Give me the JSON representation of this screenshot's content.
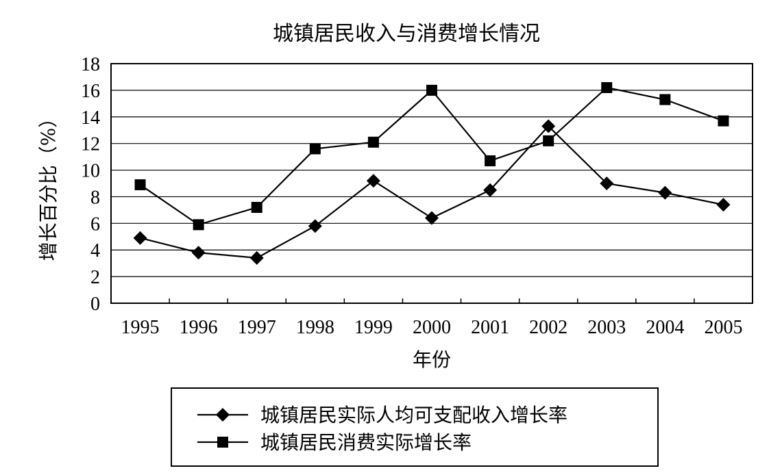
{
  "chart_data": {
    "type": "line",
    "title": "城镇居民收入与消费增长情况",
    "xlabel": "年份",
    "ylabel": "增长百分比（%）",
    "categories": [
      "1995",
      "1996",
      "1997",
      "1998",
      "1999",
      "2000",
      "2001",
      "2002",
      "2003",
      "2004",
      "2005"
    ],
    "ylim": [
      0,
      18
    ],
    "yticks": [
      0,
      2,
      4,
      6,
      8,
      10,
      12,
      14,
      16,
      18
    ],
    "grid": true,
    "legend_position": "bottom",
    "series": [
      {
        "name": "城镇居民实际人均可支配收入增长率",
        "marker": "diamond",
        "values": [
          4.9,
          3.8,
          3.4,
          5.8,
          9.2,
          6.4,
          8.5,
          13.3,
          9.0,
          8.3,
          7.4
        ]
      },
      {
        "name": "城镇居民消费实际增长率",
        "marker": "square",
        "values": [
          8.9,
          5.9,
          7.2,
          11.6,
          12.1,
          16.0,
          10.7,
          12.2,
          16.2,
          15.3,
          13.7
        ]
      }
    ]
  }
}
